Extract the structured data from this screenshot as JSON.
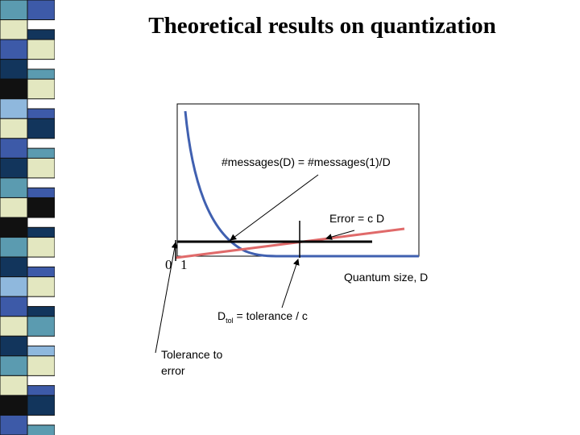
{
  "title": "Theoretical results on quantization",
  "labels": {
    "messages_formula": "#messages(D) = #messages(1)/D",
    "error_formula": "Error = c D",
    "axis_zero": "0",
    "axis_one": "1",
    "x_axis": "Quantum size, D",
    "dtol_main": "D",
    "dtol_sub": "tol",
    "dtol_rest": " = tolerance / c",
    "tolerance_line1": "Tolerance to",
    "tolerance_line2": "error"
  },
  "colors": {
    "curve": "#4060b0",
    "error_line": "#e06a6a",
    "tolerance_line": "#000000",
    "stripe_blue": "#3d5aa8",
    "stripe_navy": "#12355c",
    "stripe_cream": "#e3e7c0",
    "stripe_teal": "#5b9bb0",
    "stripe_lightblue": "#8fb8dd",
    "stripe_black": "#111111"
  }
}
